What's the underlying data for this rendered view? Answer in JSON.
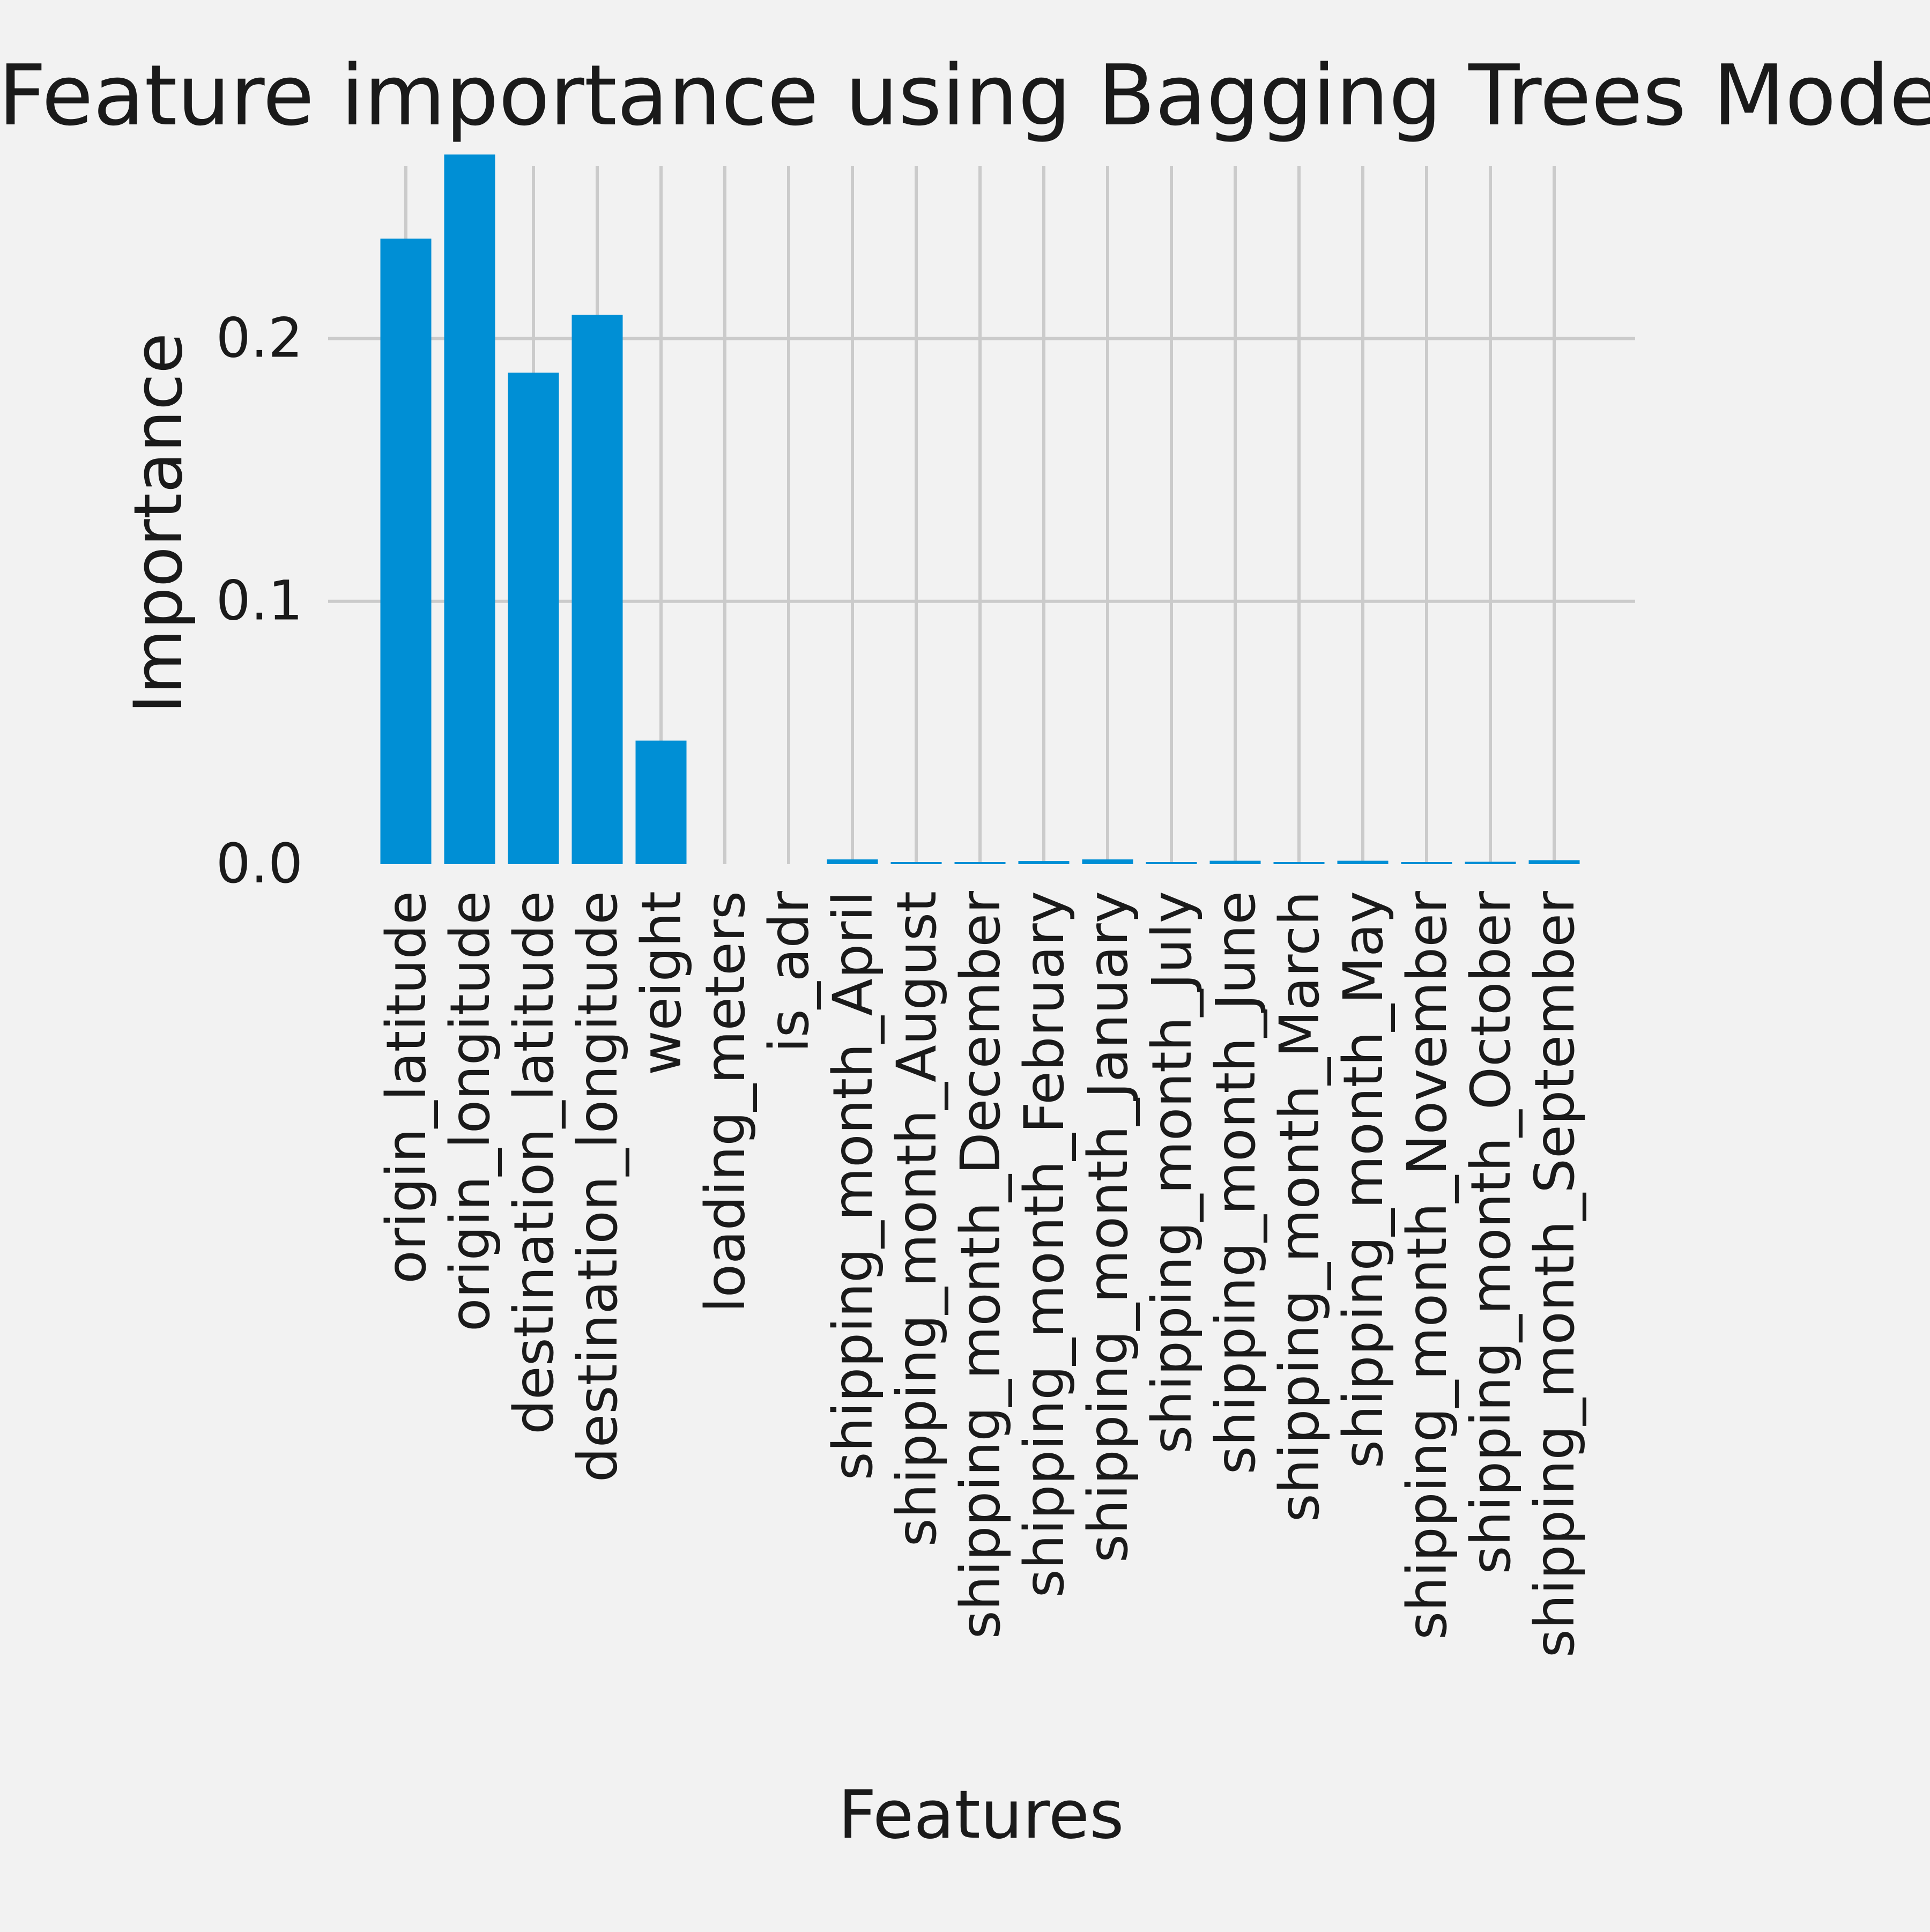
{
  "chart_data": {
    "type": "bar",
    "title": "Feature importance using Bagging Trees Model",
    "xlabel": "Features",
    "ylabel": "Importance",
    "ylim": [
      0,
      0.2825
    ],
    "yticks": [
      0.0,
      0.1,
      0.2
    ],
    "ytick_labels": [
      "0.0",
      "0.1",
      "0.2"
    ],
    "grid": true,
    "categories": [
      "origin_latitude",
      "origin_longitude",
      "destination_latitude",
      "destination_longitude",
      "weight",
      "loading_meters",
      "is_adr",
      "shipping_month_April",
      "shipping_month_August",
      "shipping_month_December",
      "shipping_month_February",
      "shipping_month_January",
      "shipping_month_July",
      "shipping_month_June",
      "shipping_month_March",
      "shipping_month_May",
      "shipping_month_November",
      "shipping_month_October",
      "shipping_month_September"
    ],
    "values": [
      0.238,
      0.27,
      0.187,
      0.209,
      0.047,
      0.0,
      0.0,
      0.0018,
      0.0008,
      0.0006,
      0.0012,
      0.0018,
      0.0008,
      0.0013,
      0.0008,
      0.0013,
      0.0007,
      0.0009,
      0.0015
    ],
    "colors": {
      "background": "#f2f2f2",
      "bar": "#008fd5",
      "grid": "#cbcbcb",
      "text": "#1a1a1a"
    }
  }
}
